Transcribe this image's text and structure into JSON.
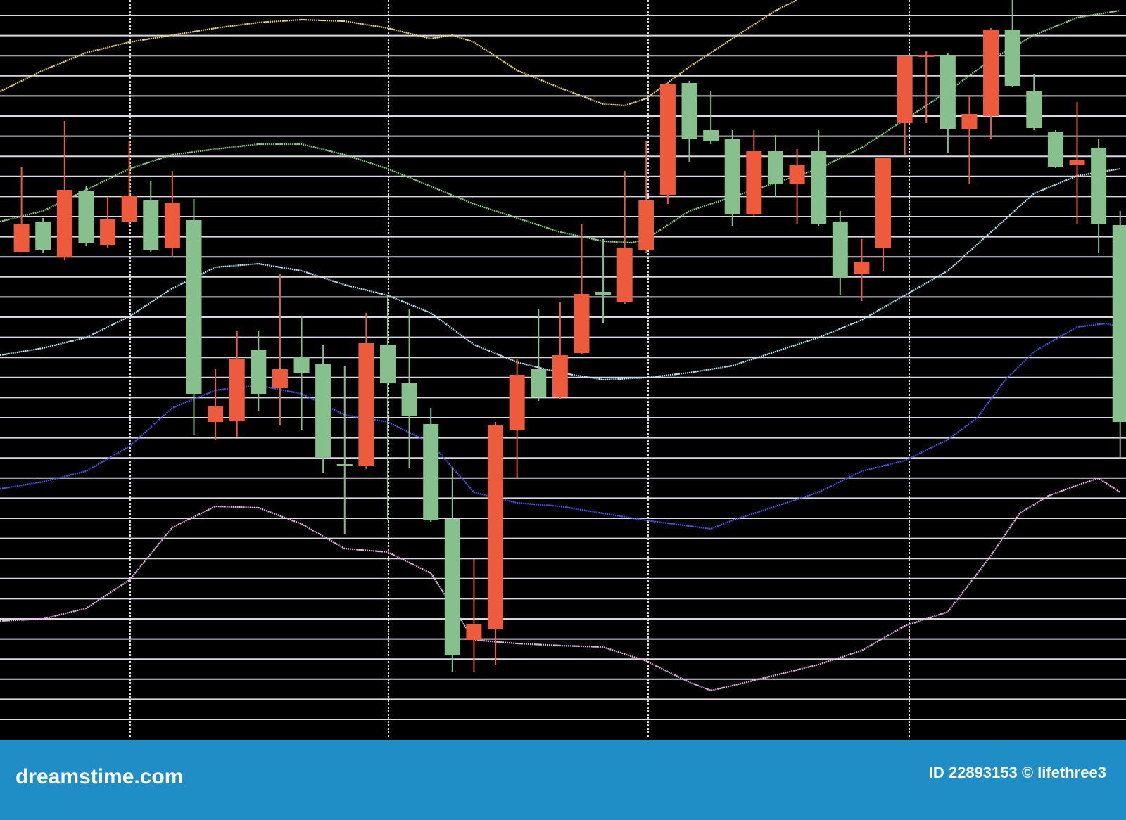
{
  "chart_data": {
    "type": "candlestick",
    "x": [
      1,
      2,
      3,
      4,
      5,
      6,
      7,
      8,
      9,
      10,
      11,
      12,
      13,
      14,
      15,
      16,
      17,
      18,
      19,
      20,
      21,
      22,
      23,
      24,
      25,
      26,
      27,
      28,
      29,
      30,
      31,
      32,
      33,
      34,
      35,
      36,
      37,
      38,
      39,
      40,
      41,
      42,
      43,
      44,
      45,
      46,
      47,
      48,
      49,
      50,
      51,
      52
    ],
    "open": [
      69.2,
      73.5,
      68.5,
      77.8,
      70.2,
      73.5,
      76.5,
      69.8,
      73.7,
      45,
      45.2,
      55.2,
      49.8,
      54.2,
      53.2,
      39,
      38.7,
      56,
      50.5,
      44.7,
      31.2,
      14,
      15.5,
      43.8,
      52.5,
      48.5,
      54.8,
      63.5,
      62,
      69.5,
      77.3,
      93.2,
      86.5,
      85.2,
      74.5,
      83.5,
      78.8,
      83.5,
      73.5,
      66,
      69.8,
      87.5,
      97,
      97.2,
      86.7,
      88.5,
      100.8,
      92,
      86.3,
      81.5,
      84,
      73
    ],
    "high": [
      81.3,
      74,
      87.8,
      78.5,
      77,
      85,
      79.2,
      80.7,
      76.7,
      52.5,
      58,
      58,
      66,
      60,
      56,
      53,
      60.5,
      63,
      61,
      47,
      38.5,
      25.5,
      45,
      54,
      61,
      62,
      73.2,
      71,
      80.7,
      85,
      93.2,
      93.5,
      92,
      86.5,
      86.5,
      85.8,
      83.8,
      86.5,
      75,
      71,
      82.5,
      97,
      97.8,
      97.4,
      91.5,
      101,
      105,
      94.5,
      86.5,
      90.5,
      85.2,
      75
    ],
    "low": [
      69.2,
      69,
      68,
      70,
      69.8,
      73,
      69.2,
      68.5,
      43.2,
      42.5,
      42.8,
      46.5,
      44.5,
      43.8,
      37.8,
      29,
      38.3,
      31,
      38.5,
      30.8,
      9.5,
      9.5,
      10.5,
      37,
      48,
      48.3,
      54.6,
      59,
      61.8,
      69,
      76,
      82,
      84.5,
      72.8,
      74.3,
      77,
      73.2,
      72.8,
      63,
      62.2,
      66.5,
      83,
      87.5,
      83.2,
      78.8,
      85.2,
      92.6,
      86.5,
      81.1,
      73.2,
      69,
      40
    ],
    "close": [
      73.2,
      69.5,
      78,
      70.5,
      73.8,
      77.2,
      69.5,
      76.2,
      49,
      47.2,
      54,
      49,
      52.5,
      52,
      40,
      38.7,
      56.2,
      50.5,
      45.8,
      31,
      11.8,
      16.2,
      44.5,
      51.7,
      48.5,
      54.5,
      63.2,
      63,
      69.8,
      76.5,
      93,
      85.2,
      85,
      74.5,
      83.5,
      78.8,
      81.5,
      73.2,
      65.5,
      67.8,
      82.5,
      97,
      97.2,
      86.7,
      88.8,
      100.8,
      92.8,
      86.8,
      81.3,
      82.2,
      73.2,
      45
    ],
    "up_color": "#ee5a3c",
    "down_color": "#86c08c",
    "series": [
      {
        "color": "#e6d47a",
        "x": [
          0,
          2,
          4,
          6,
          8,
          10,
          12,
          14,
          16,
          18,
          20,
          21,
          22,
          24,
          26,
          28,
          29,
          30,
          32,
          34,
          36,
          37
        ],
        "values": [
          92,
          95,
          97.5,
          99,
          100,
          101,
          101.8,
          102.2,
          102,
          101,
          99.5,
          100,
          99,
          95,
          92.5,
          90.2,
          90,
          91,
          95.5,
          99.5,
          103.5,
          105
        ]
      },
      {
        "color": "#8fd08a",
        "x": [
          0,
          2,
          4,
          6,
          8,
          10,
          12,
          14,
          16,
          18,
          20,
          22,
          24,
          26,
          28,
          29.33,
          30,
          32,
          34,
          36,
          38,
          40,
          42,
          44,
          46,
          48,
          50,
          52
        ],
        "values": [
          73.5,
          75,
          78,
          81,
          83,
          83.8,
          84.5,
          84.5,
          83,
          81,
          78.5,
          76,
          74,
          72,
          70.7,
          70.5,
          71,
          75,
          77,
          79,
          81,
          84,
          88,
          92,
          96.5,
          100,
          102.5,
          103.5
        ]
      },
      {
        "color": "#bfe4f5",
        "x": [
          0,
          2,
          4,
          6,
          8,
          10,
          12,
          14,
          16,
          18,
          20,
          22,
          24,
          26,
          28,
          30,
          32,
          34,
          36,
          38,
          40,
          42,
          44,
          46,
          48,
          50,
          52
        ],
        "values": [
          54.5,
          55.5,
          57,
          60,
          64,
          67,
          67.5,
          66.5,
          64.5,
          63,
          60.5,
          56,
          53.5,
          52,
          51,
          51.3,
          52,
          53,
          55,
          57,
          59.5,
          63,
          66.5,
          72,
          77.5,
          80,
          81
        ]
      },
      {
        "color": "#4a55e0",
        "x": [
          0,
          2,
          4,
          6,
          8,
          10,
          12,
          14,
          16,
          18,
          20,
          22,
          24,
          26,
          28,
          30,
          32,
          33,
          34,
          36,
          38,
          40,
          42,
          44,
          45.33,
          46.67,
          48,
          50,
          51.33,
          52
        ],
        "values": [
          35.5,
          36.5,
          38,
          41.5,
          47,
          49.5,
          50.2,
          49,
          46,
          45,
          42,
          35,
          33.5,
          33,
          32,
          31,
          30.2,
          29.8,
          31,
          33,
          35,
          38,
          39.5,
          42.5,
          45.5,
          51,
          55,
          58.5,
          59,
          58.5
        ]
      },
      {
        "color": "#e8b6e6",
        "x": [
          0,
          2,
          4,
          6,
          8,
          10,
          12,
          14,
          16,
          18,
          20,
          22,
          24,
          26,
          28,
          30,
          32,
          33,
          34,
          36,
          38,
          40,
          42,
          44,
          46,
          47.33,
          48.67,
          50,
          51,
          52
        ],
        "values": [
          16.7,
          17,
          18.5,
          22.5,
          30,
          33,
          32.8,
          30.5,
          27,
          26.5,
          23.5,
          14,
          13.5,
          13.2,
          13,
          11,
          8,
          6.8,
          7.5,
          9,
          10.5,
          12.5,
          16,
          18,
          26,
          32,
          34.5,
          36,
          37,
          35
        ]
      }
    ],
    "xlim": [
      0,
      52.27
    ],
    "ylim": [
      0,
      105
    ],
    "grid": true
  },
  "footer": {
    "brand": "dreamstime.com",
    "credit": "ID 22893153 © lifethree3"
  }
}
